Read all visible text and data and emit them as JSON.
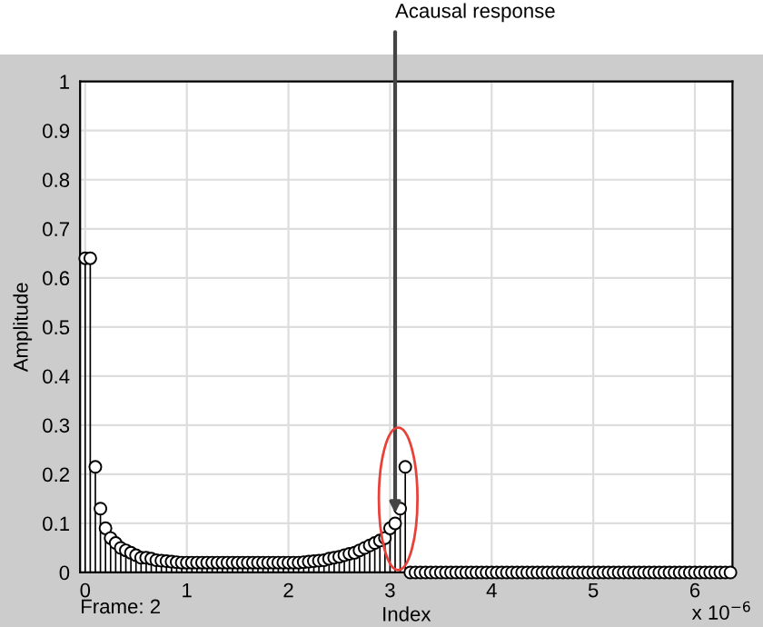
{
  "chart_data": {
    "type": "lollipop",
    "xlabel": "Index",
    "ylabel": "Amplitude",
    "x": [
      0,
      0.05,
      0.1,
      0.15,
      0.2,
      0.25,
      0.3,
      0.35,
      0.4,
      0.45,
      0.5,
      0.55,
      0.6,
      0.65,
      0.7,
      0.75,
      0.8,
      0.85,
      0.9,
      0.95,
      1,
      1.05,
      1.1,
      1.15,
      1.2,
      1.25,
      1.3,
      1.35,
      1.4,
      1.45,
      1.5,
      1.55,
      1.6,
      1.65,
      1.7,
      1.75,
      1.8,
      1.85,
      1.9,
      1.95,
      2,
      2.05,
      2.1,
      2.15,
      2.2,
      2.25,
      2.3,
      2.35,
      2.4,
      2.45,
      2.5,
      2.55,
      2.6,
      2.65,
      2.7,
      2.75,
      2.8,
      2.85,
      2.9,
      2.95,
      3,
      3.05,
      3.1,
      3.15,
      3.2,
      3.25,
      3.3,
      3.35,
      3.4,
      3.45,
      3.5,
      3.55,
      3.6,
      3.65,
      3.7,
      3.75,
      3.8,
      3.85,
      3.9,
      3.95,
      4,
      4.05,
      4.1,
      4.15,
      4.2,
      4.25,
      4.3,
      4.35,
      4.4,
      4.45,
      4.5,
      4.55,
      4.6,
      4.65,
      4.7,
      4.75,
      4.8,
      4.85,
      4.9,
      4.95,
      5,
      5.05,
      5.1,
      5.15,
      5.2,
      5.25,
      5.3,
      5.35,
      5.4,
      5.45,
      5.5,
      5.55,
      5.6,
      5.65,
      5.7,
      5.75,
      5.8,
      5.85,
      5.9,
      5.95,
      6,
      6.05,
      6.1,
      6.15,
      6.2,
      6.25,
      6.3,
      6.35
    ],
    "values": [
      0.64,
      0.64,
      0.215,
      0.13,
      0.09,
      0.07,
      0.06,
      0.05,
      0.045,
      0.04,
      0.035,
      0.03,
      0.03,
      0.028,
      0.025,
      0.024,
      0.023,
      0.022,
      0.021,
      0.02,
      0.02,
      0.02,
      0.02,
      0.02,
      0.02,
      0.02,
      0.02,
      0.02,
      0.02,
      0.02,
      0.02,
      0.02,
      0.02,
      0.02,
      0.02,
      0.02,
      0.02,
      0.02,
      0.02,
      0.02,
      0.02,
      0.02,
      0.02,
      0.021,
      0.022,
      0.023,
      0.024,
      0.025,
      0.028,
      0.03,
      0.032,
      0.035,
      0.038,
      0.04,
      0.045,
      0.05,
      0.055,
      0.06,
      0.065,
      0.07,
      0.09,
      0.1,
      0.13,
      0.215,
      0,
      0,
      0,
      0,
      0,
      0,
      0,
      0,
      0,
      0,
      0,
      0,
      0,
      0,
      0,
      0,
      0,
      0,
      0,
      0,
      0,
      0,
      0,
      0,
      0,
      0,
      0,
      0,
      0,
      0,
      0,
      0,
      0,
      0,
      0,
      0,
      0,
      0,
      0,
      0,
      0,
      0,
      0,
      0,
      0,
      0,
      0,
      0,
      0,
      0,
      0,
      0,
      0,
      0,
      0,
      0,
      0,
      0,
      0,
      0,
      0,
      0,
      0,
      0
    ],
    "color": "#000000",
    "marker": "circle",
    "grid": true,
    "xlim": [
      -0.05,
      6.37
    ],
    "xticks": [
      0,
      1,
      2,
      3,
      4,
      5,
      6
    ],
    "ylim": [
      0,
      1
    ],
    "yticks": [
      0,
      0.1,
      0.2,
      0.3,
      0.4,
      0.5,
      0.6,
      0.7,
      0.8,
      0.9,
      1
    ],
    "annotations": [
      {
        "text": "Acausal response",
        "x": 3.05,
        "y": 0.1
      },
      "Frame: 2",
      "x 10$^{−6}$"
    ]
  }
}
